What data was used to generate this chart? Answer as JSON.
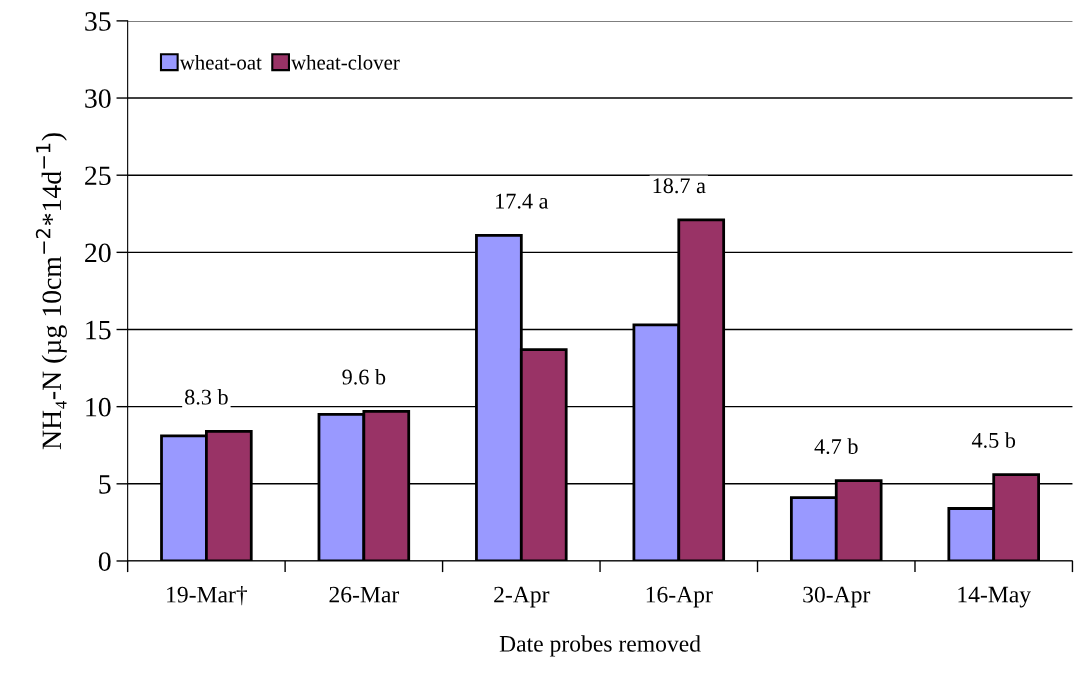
{
  "chart_data": {
    "type": "bar",
    "xlabel": "Date probes removed",
    "ylabel": "NH₄-N (µg 10cm$^{−2}$*14d$^{−1}$)",
    "categories": [
      "19-Mar†",
      "26-Mar",
      "2-Apr",
      "16-Apr",
      "30-Apr",
      "14-May"
    ],
    "series": [
      {
        "name": "wheat-oat",
        "color": "#9999ff",
        "values": [
          8.1,
          9.5,
          21.1,
          15.3,
          4.1,
          3.4
        ]
      },
      {
        "name": "wheat-clover",
        "color": "#993366",
        "values": [
          8.4,
          9.7,
          13.7,
          22.1,
          5.2,
          5.6
        ]
      }
    ],
    "annotations": [
      "8.3 b",
      "9.6 b",
      "17.4 a",
      "18.7 a",
      "4.7 b",
      "4.5 b"
    ],
    "ylim": [
      0,
      35
    ],
    "yticks": [
      0,
      5,
      10,
      15,
      20,
      25,
      30,
      35
    ],
    "grid": "y",
    "legend": "top left"
  }
}
